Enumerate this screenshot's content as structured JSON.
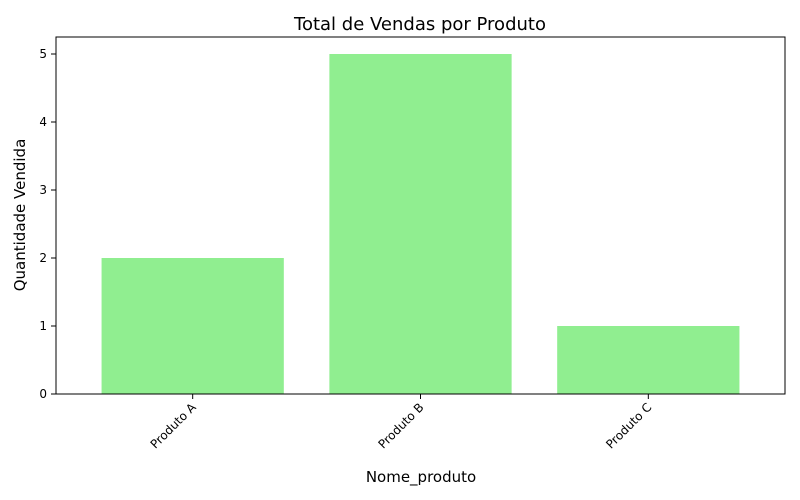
{
  "chart_data": {
    "type": "bar",
    "title": "Total de Vendas por Produto",
    "xlabel": "Nome_produto",
    "ylabel": "Quantidade Vendida",
    "categories": [
      "Produto A",
      "Produto B",
      "Produto C"
    ],
    "values": [
      2,
      5,
      1
    ],
    "ylim": [
      0,
      5.25
    ],
    "yticks": [
      0,
      1,
      2,
      3,
      4,
      5
    ],
    "bar_color": "#90ee90",
    "grid": false,
    "legend": "none"
  }
}
